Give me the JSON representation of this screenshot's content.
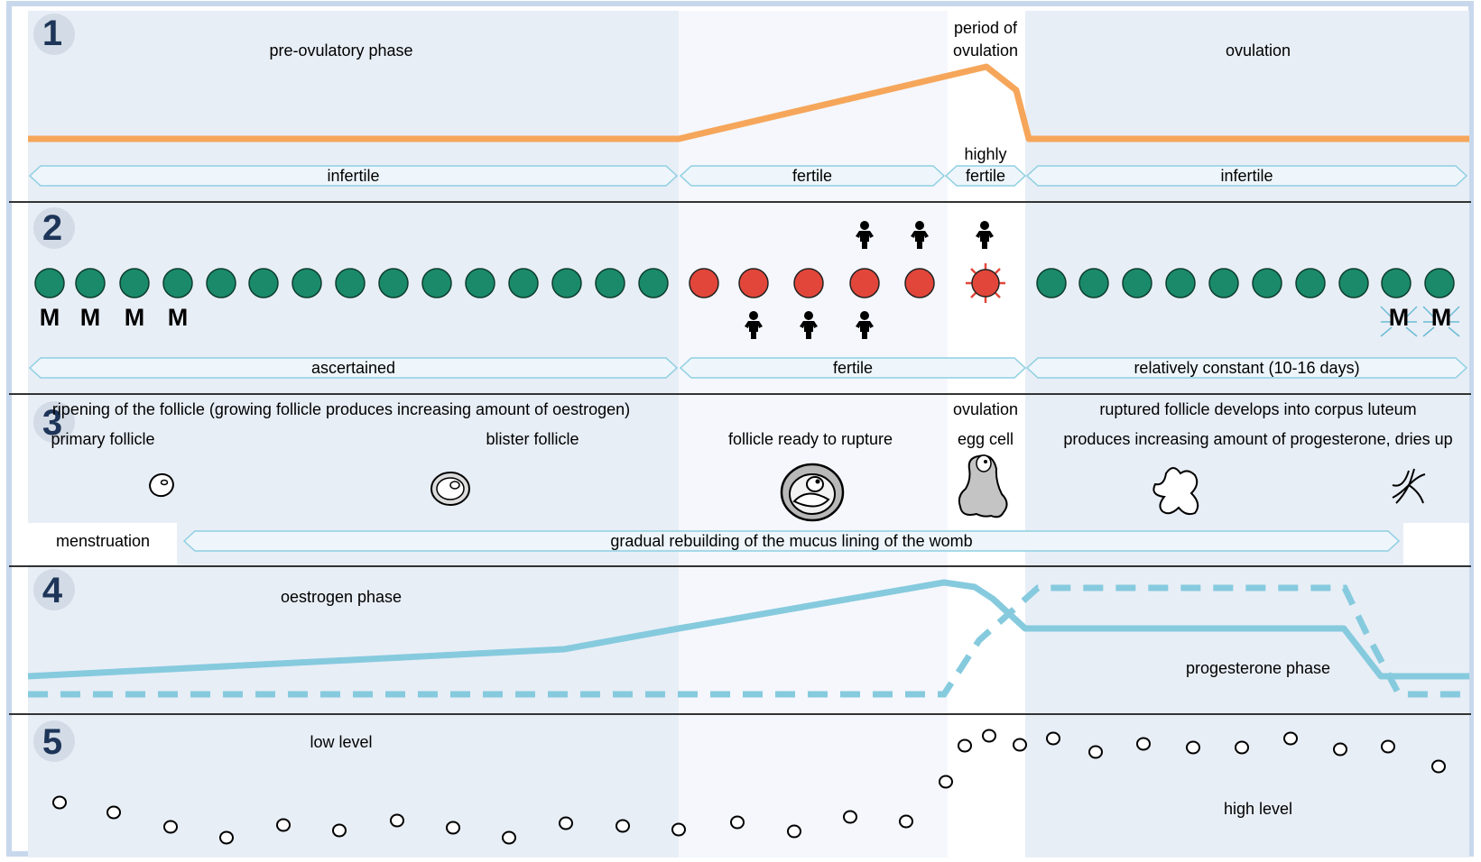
{
  "sections": {
    "s1": {
      "number": "1",
      "labels": {
        "pre_ovulatory": "pre-ovulatory phase",
        "period_line1": "period of",
        "period_line2": "ovulation",
        "ovulation": "ovulation",
        "highly_line1": "highly",
        "highly_line2": "fertile"
      },
      "bands": [
        "infertile",
        "fertile",
        "fertile",
        "infertile"
      ]
    },
    "s2": {
      "number": "2",
      "m_label": "M",
      "bands": [
        "ascertained",
        "fertile",
        "relatively constant (10-16 days)"
      ]
    },
    "s3": {
      "number": "3",
      "ripening": "ripening of the follicle (growing follicle produces increasing amount of oestrogen)",
      "ovulation": "ovulation",
      "corpus": "ruptured follicle develops into corpus luteum",
      "primary": "primary follicle",
      "blister": "blister follicle",
      "ready": "follicle ready to rupture",
      "egg": "egg cell",
      "progesterone_text": "produces increasing amount of progesterone, dries up",
      "menstruation": "menstruation",
      "rebuilding": "gradual rebuilding of the mucus lining of the womb"
    },
    "s4": {
      "number": "4",
      "oestrogen": "oestrogen phase",
      "progesterone": "progesterone phase"
    },
    "s5": {
      "number": "5",
      "low": "low level",
      "high": "high level"
    }
  },
  "colors": {
    "page_bg": "#ffffff",
    "panel_bg": "#e8eef6",
    "fertile_bg": "#f5f7fc",
    "highly_bg": "#ffffff",
    "orange_line": "#f6a65a",
    "cyan_line": "#86cade",
    "band_stroke": "#8ecfe2",
    "band_fill": "#eef6fb",
    "green_dot": "#1a8a6a",
    "red_dot": "#e2463a",
    "badge_bg": "#d3dbe6",
    "number_color": "#1d3558",
    "separator": "#333333",
    "frame": "#c8d8ec"
  },
  "icons": [
    "menstruation-m-icon",
    "sperm-figure-icon",
    "ruptured-egg-icon",
    "primary-follicle-icon",
    "blister-follicle-icon",
    "mature-follicle-icon",
    "egg-cell-icon",
    "corpus-luteum-icon",
    "dried-corpus-icon",
    "temperature-dot-icon"
  ]
}
